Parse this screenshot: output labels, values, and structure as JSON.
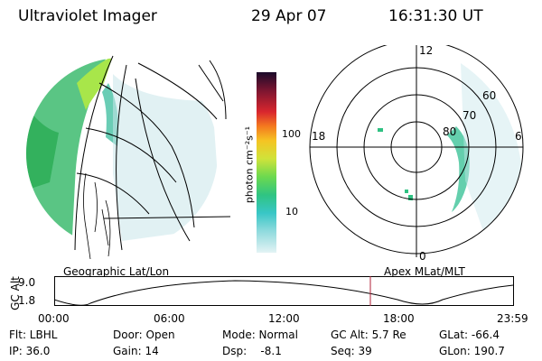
{
  "header": {
    "title": "Ultraviolet Imager",
    "date": "29 Apr 07",
    "time": "16:31:30 UT"
  },
  "colorbar": {
    "unit_label": "photon cm⁻²s⁻¹",
    "ticks": [
      "100",
      "10"
    ]
  },
  "polar": {
    "mlt_labels": [
      "12",
      "18",
      "6",
      "0"
    ],
    "lat_labels": [
      "60",
      "70",
      "80"
    ]
  },
  "timeline": {
    "left_title": "Geographic Lat/Lon",
    "right_title": "Apex MLat/MLT",
    "axis_label": "GC Alt",
    "y_ticks": [
      "9.0",
      "1.8"
    ],
    "x_ticks": [
      "00:00",
      "06:00",
      "12:00",
      "18:00",
      "23:59"
    ],
    "current_marker_color": "#b0203a"
  },
  "footer": {
    "col1": [
      "Flt: LBHL",
      "IP: 36.0"
    ],
    "col2": [
      "Door: Open",
      "Gain: 14"
    ],
    "col3": [
      "Mode: Normal",
      "Dsp:    -8.1"
    ],
    "col4": [
      "GC Alt: 5.7 Re",
      "Seq: 39"
    ],
    "col5": [
      "GLat: -66.4",
      "GLon: 190.7"
    ]
  }
}
